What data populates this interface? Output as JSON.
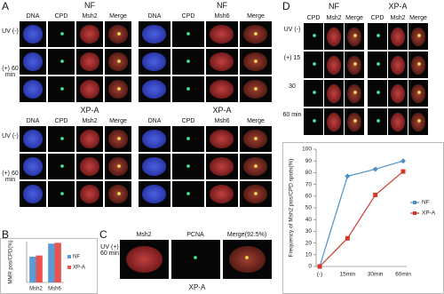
{
  "panel_labels": [
    "A",
    "B",
    "C",
    "D"
  ],
  "a": {
    "blocks": [
      {
        "title": "NF",
        "columns": [
          "DNA",
          "CPD",
          "Msh2",
          "Merge"
        ],
        "rows": [
          "UV (-)",
          "(+) 60 min"
        ]
      },
      {
        "title": "NF",
        "columns": [
          "DNA",
          "CPD",
          "Msh6",
          "Merge"
        ]
      },
      {
        "title": "XP-A",
        "columns": [
          "DNA",
          "CPD",
          "Msh2",
          "Merge"
        ],
        "rows": [
          "UV (-)",
          "(+) 60 min"
        ]
      },
      {
        "title": "XP-A",
        "columns": [
          "DNA",
          "CPD",
          "Msh6",
          "Merge"
        ]
      }
    ]
  },
  "c": {
    "columns": [
      "Msh2",
      "PCNA",
      "Merge(92.5%)"
    ],
    "row": "UV (+) 60 min",
    "caption": "XP-A"
  },
  "d": {
    "groups": [
      "NF",
      "XP-A"
    ],
    "columns": [
      "CPD",
      "Msh2",
      "Merge"
    ],
    "rows": [
      "UV (-)",
      "(+) 15",
      "30",
      "60 min"
    ]
  },
  "chart_data": [
    {
      "type": "bar",
      "y_label": "MMR pos/CPD(%)",
      "categories": [
        "Msh2",
        "Msh6"
      ],
      "series": [
        {
          "name": "NF",
          "color": "#5b9bd5",
          "values": [
            63,
            95
          ]
        },
        {
          "name": "XP-A",
          "color": "#e8534f",
          "values": [
            66,
            97
          ]
        }
      ],
      "ylim": [
        0,
        100
      ],
      "legend": "right"
    },
    {
      "type": "line",
      "y_label": "Frequency of Msh2 pos/CPD spots(%)",
      "categories": [
        "(-)",
        "15min",
        "30min",
        "60min"
      ],
      "series": [
        {
          "name": "NF",
          "color": "#4a90c8",
          "marker": "diamond",
          "values": [
            0,
            77,
            83,
            90
          ]
        },
        {
          "name": "XP-A",
          "color": "#d0392b",
          "marker": "square",
          "values": [
            0,
            24,
            61,
            81
          ]
        }
      ],
      "ylim": [
        0,
        100
      ],
      "yticks": [
        0,
        10,
        20,
        30,
        40,
        50,
        60,
        70,
        80,
        90,
        100
      ],
      "legend": "right"
    }
  ]
}
